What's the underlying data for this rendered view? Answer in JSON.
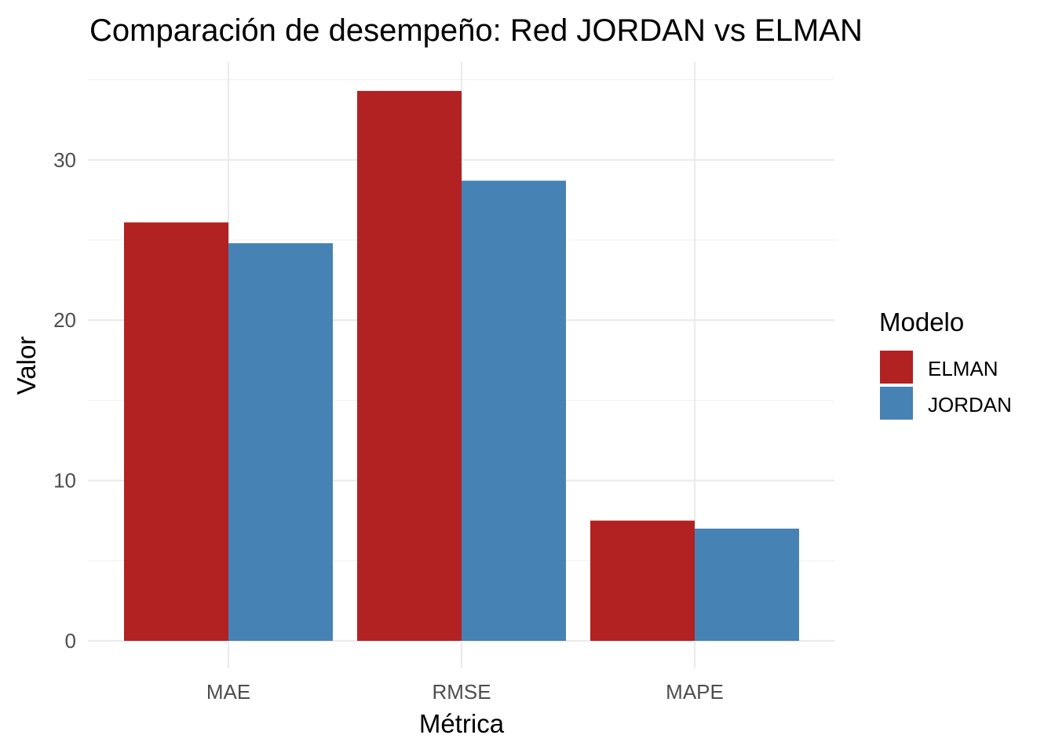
{
  "chart_data": {
    "type": "bar",
    "title": "Comparación de desempeño: Red JORDAN vs ELMAN",
    "xlabel": "Métrica",
    "ylabel": "Valor",
    "categories": [
      "MAE",
      "RMSE",
      "MAPE"
    ],
    "series": [
      {
        "name": "ELMAN",
        "color": "#B22222",
        "values": [
          26.1,
          34.3,
          7.5
        ]
      },
      {
        "name": "JORDAN",
        "color": "#4682B4",
        "values": [
          24.8,
          28.7,
          7.0
        ]
      }
    ],
    "ylim": [
      0,
      35
    ],
    "yticks": [
      "0",
      "10",
      "20",
      "30"
    ],
    "grid": true,
    "legend": {
      "title": "Modelo",
      "placement": "right"
    }
  }
}
